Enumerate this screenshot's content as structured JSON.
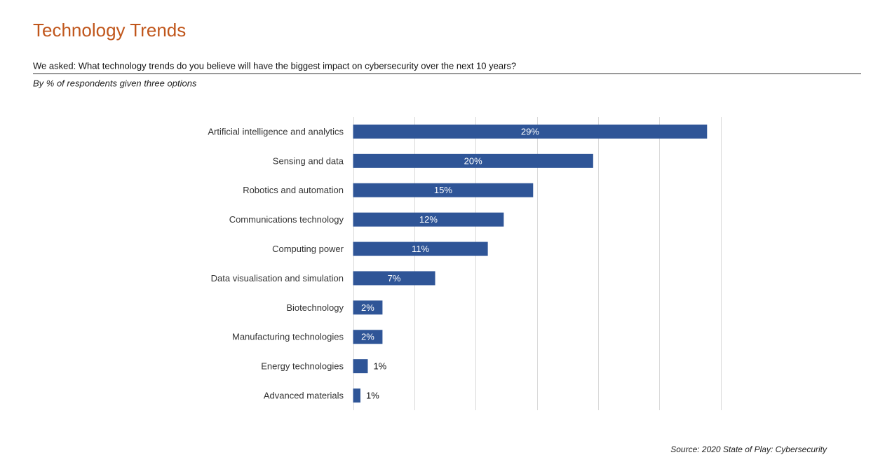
{
  "chart_data": {
    "type": "bar",
    "orientation": "horizontal",
    "title": "Technology Trends",
    "subtitle": "We asked: What technology trends do you believe will have the biggest impact on cybersecurity over the next 10 years?",
    "note": "By % of respondents given three options",
    "source": "Source: 2020 State of Play: Cybersecurity",
    "categories": [
      "Artificial intelligence and analytics",
      "Sensing and data",
      "Robotics and automation",
      "Communications technology",
      "Computing power",
      "Data visualisation and simulation",
      "Biotechnology",
      "Manufacturing technologies",
      "Energy technologies",
      "Advanced materials"
    ],
    "values": [
      28.9,
      19.6,
      14.7,
      12.3,
      11.0,
      6.7,
      2.4,
      2.4,
      1.2,
      0.6
    ],
    "value_labels": [
      "29%",
      "20%",
      "15%",
      "12%",
      "11%",
      "7%",
      "2%",
      "2%",
      "1%",
      "1%"
    ],
    "color": "#2f5597",
    "xlim": [
      0,
      30
    ],
    "xticks": [
      0,
      5,
      10,
      15,
      20,
      25,
      30
    ],
    "grid": true
  }
}
